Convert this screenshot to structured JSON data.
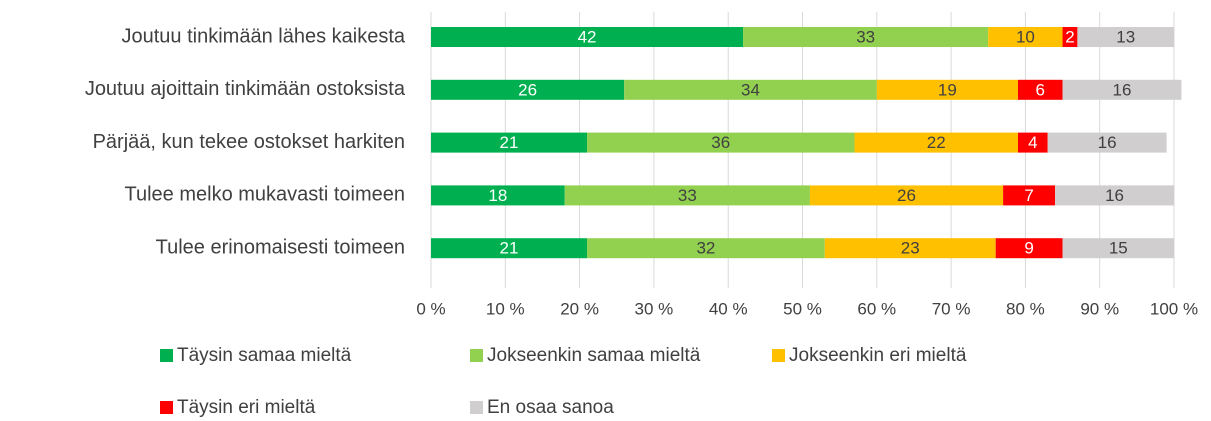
{
  "chart_data": {
    "type": "stacked-bar-horizontal",
    "categories": [
      "Joutuu tinkimään lähes kaikesta",
      "Joutuu ajoittain tinkimään ostoksista",
      "Pärjää, kun tekee ostokset harkiten",
      "Tulee melko mukavasti toimeen",
      "Tulee erinomaisesti toimeen"
    ],
    "series": [
      {
        "name": "Täysin samaa mieltä",
        "color": "#00b050",
        "label_color": "#ffffff",
        "values": [
          42,
          26,
          21,
          18,
          21
        ]
      },
      {
        "name": "Jokseenkin samaa mieltä",
        "color": "#92d050",
        "label_color": "#404040",
        "values": [
          33,
          34,
          36,
          33,
          32
        ]
      },
      {
        "name": "Jokseenkin eri mieltä",
        "color": "#ffc000",
        "label_color": "#404040",
        "values": [
          10,
          19,
          22,
          26,
          23
        ]
      },
      {
        "name": "Täysin eri mieltä",
        "color": "#ff0000",
        "label_color": "#ffffff",
        "values": [
          2,
          6,
          4,
          7,
          9
        ]
      },
      {
        "name": "En osaa sanoa",
        "color": "#d0cece",
        "label_color": "#404040",
        "values": [
          13,
          16,
          16,
          16,
          15
        ]
      }
    ],
    "xlim": [
      0,
      100
    ],
    "xticks": [
      {
        "value": 0,
        "label": "0 %"
      },
      {
        "value": 10,
        "label": "10 %"
      },
      {
        "value": 20,
        "label": "20 %"
      },
      {
        "value": 30,
        "label": "30 %"
      },
      {
        "value": 40,
        "label": "40 %"
      },
      {
        "value": 50,
        "label": "50 %"
      },
      {
        "value": 60,
        "label": "60 %"
      },
      {
        "value": 70,
        "label": "70 %"
      },
      {
        "value": 80,
        "label": "80 %"
      },
      {
        "value": 90,
        "label": "90 %"
      },
      {
        "value": 100,
        "label": "100 %"
      }
    ],
    "grid": true,
    "legend": "bottom"
  }
}
